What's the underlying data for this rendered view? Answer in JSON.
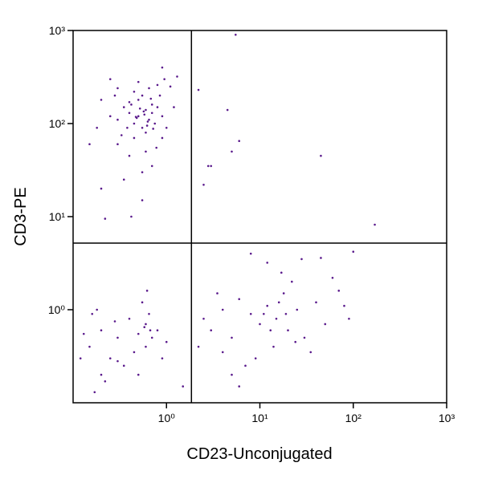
{
  "chart_data": {
    "type": "scatter",
    "x_label": "CD23-Unconjugated",
    "y_label": "CD3-PE",
    "xlim": [
      0.1,
      1000
    ],
    "ylim": [
      0.1,
      1000
    ],
    "xscale": "log",
    "yscale": "log",
    "xticks": [
      {
        "value": 1,
        "label": "10⁰"
      },
      {
        "value": 10,
        "label": "10¹"
      },
      {
        "value": 100,
        "label": "10²"
      },
      {
        "value": 1000,
        "label": "10³"
      }
    ],
    "yticks": [
      {
        "value": 1,
        "label": "10⁰"
      },
      {
        "value": 10,
        "label": "10¹"
      },
      {
        "value": 100,
        "label": "10²"
      },
      {
        "value": 1000,
        "label": "10³"
      }
    ],
    "gate_x": 1.85,
    "gate_y": 5.2,
    "series": [
      {
        "color": "#5a1a8c",
        "x": [
          0.5,
          0.6,
          0.45,
          0.7,
          0.55,
          0.4,
          0.65,
          0.8,
          0.35,
          0.5,
          0.6,
          0.75,
          0.45,
          0.55,
          0.3,
          0.7,
          0.9,
          0.4,
          0.62,
          0.52,
          0.58,
          0.48,
          0.68,
          0.38,
          0.85,
          0.95,
          1.1,
          0.9,
          0.2,
          0.25,
          0.18,
          0.3,
          0.4,
          0.6,
          0.7,
          0.35,
          0.55,
          0.9,
          1.2,
          1.3,
          0.8,
          0.65,
          0.45,
          0.3,
          0.25,
          0.5,
          0.42,
          0.57,
          0.63,
          0.72,
          0.33,
          0.28,
          0.78,
          1.0,
          0.15,
          0.2,
          0.42,
          0.22,
          0.55,
          0.47,
          5.5,
          2.2,
          4.5,
          6,
          5,
          3,
          2.5,
          45,
          170,
          2.8,
          0.15,
          0.2,
          0.18,
          0.25,
          0.3,
          0.4,
          0.5,
          0.6,
          0.65,
          0.55,
          0.7,
          0.6,
          0.45,
          0.35,
          0.2,
          0.17,
          0.22,
          0.28,
          0.12,
          0.13,
          0.8,
          1.0,
          0.9,
          0.62,
          0.58,
          0.67,
          0.3,
          0.5,
          0.16,
          1.5,
          2.5,
          3,
          4,
          5,
          6,
          8,
          10,
          12,
          15,
          18,
          20,
          25,
          30,
          14,
          9,
          7,
          5,
          40,
          50,
          70,
          80,
          90,
          22,
          28,
          17,
          11,
          13,
          16,
          19,
          24,
          35,
          6,
          4,
          3.5,
          2.2,
          12,
          45,
          100,
          60,
          8
        ],
        "y": [
          120,
          140,
          100,
          160,
          90,
          130,
          110,
          150,
          150,
          180,
          80,
          100,
          70,
          200,
          110,
          130,
          120,
          170,
          95,
          145,
          125,
          115,
          185,
          90,
          200,
          300,
          250,
          400,
          180,
          120,
          90,
          60,
          45,
          50,
          35,
          25,
          30,
          70,
          150,
          320,
          260,
          240,
          220,
          240,
          300,
          280,
          160,
          135,
          105,
          88,
          75,
          200,
          55,
          90,
          60,
          20,
          10,
          9.5,
          15,
          118,
          900,
          230,
          140,
          65,
          50,
          35,
          22,
          45,
          8.2,
          35,
          0.4,
          0.6,
          1.0,
          0.3,
          0.5,
          0.8,
          0.55,
          0.7,
          0.9,
          1.2,
          0.5,
          0.4,
          0.35,
          0.25,
          0.2,
          0.13,
          0.17,
          0.75,
          0.3,
          0.55,
          0.6,
          0.45,
          0.3,
          1.6,
          0.65,
          0.6,
          0.28,
          0.2,
          0.9,
          0.15,
          0.8,
          0.6,
          1.0,
          0.5,
          1.3,
          0.9,
          0.7,
          1.1,
          0.8,
          1.5,
          0.6,
          1.0,
          0.5,
          0.4,
          0.3,
          0.25,
          0.2,
          1.2,
          0.7,
          1.6,
          1.1,
          0.8,
          2.0,
          3.5,
          2.5,
          0.9,
          0.6,
          1.2,
          0.9,
          0.45,
          0.35,
          0.15,
          0.35,
          1.5,
          0.4,
          3.2,
          3.6,
          4.2,
          2.2,
          4.0
        ]
      }
    ]
  }
}
